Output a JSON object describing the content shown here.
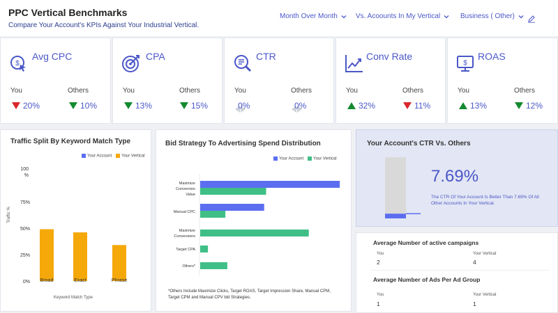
{
  "header": {
    "title": "PPC Vertical Benchmarks",
    "subtitle": "Compare Your Account's KPIs Against Your Industrial Vertical.",
    "filters": [
      "Month Over Month",
      "Vs. Acoounts In My Vertical",
      "Business ( Other)"
    ]
  },
  "kpis": [
    {
      "title": "Avg CPC",
      "you_label": "You",
      "others_label": "Others",
      "you": "20%",
      "others": "10%",
      "you_trend": "down-red",
      "others_trend": "down-green"
    },
    {
      "title": "CPA",
      "you_label": "You",
      "others_label": "Others",
      "you": "13%",
      "others": "15%",
      "you_trend": "down-green",
      "others_trend": "down-green"
    },
    {
      "title": "CTR",
      "you_label": "You",
      "others_label": "Others",
      "you": "0%",
      "others": "0%",
      "you_trend": "neutral",
      "others_trend": "neutral"
    },
    {
      "title": "Conv Rate",
      "you_label": "You",
      "others_label": "Others",
      "you": "32%",
      "others": "11%",
      "you_trend": "up-green",
      "others_trend": "down-red"
    },
    {
      "title": "ROAS",
      "you_label": "You",
      "others_label": "Others",
      "you": "13%",
      "others": "12%",
      "you_trend": "up-green",
      "others_trend": "down-green"
    }
  ],
  "traffic": {
    "title": "Traffic Split By Keyword Match Type",
    "legend_you": "Your Account",
    "legend_vertical": "Your Vertical",
    "ylabel": "Traffic %",
    "xlabel": "Keyword Match Type",
    "ytick_100": "100",
    "ytick_100_unit": "%",
    "yticks": [
      "75%",
      "50%",
      "25%",
      "0%"
    ]
  },
  "bid": {
    "title": "Bid Strategy To Advertising Spend Distribution",
    "legend_you": "Your Account",
    "legend_vertical": "Your Vertical",
    "labels": [
      [
        "Maximize",
        "Conversion",
        "Value"
      ],
      [
        "Manual CPC"
      ],
      [
        "Maximize",
        "Conversions"
      ],
      [
        "Target CPA"
      ],
      [
        "Others*"
      ]
    ],
    "footnote_1": "*Others Include Maximize Clicks, Target ROAS, Target Impression Share, Manual CPM,",
    "footnote_2": "Target CPM and Manual CPV bid Strategies."
  },
  "ctr": {
    "title": "Your Account's CTR Vs. Others",
    "value": "7.69%",
    "desc": "The CTR Of Your Account Is Better Than 7.69% Of All Other Accounts In Your Vertical.",
    "percentile": 7.69
  },
  "stats": {
    "campaigns_title": "Average Number of active campaigns",
    "ads_title": "Average Number of Ads Per Ad Group",
    "you_label": "You",
    "vertical_label": "Your Vertical",
    "campaigns_you": "2",
    "campaigns_vertical": "4",
    "ads_you": "1",
    "ads_vertical": "1"
  },
  "colors": {
    "accent": "#4a57c8",
    "your_account": "#5b6ef0",
    "your_vertical_traffic": "#f5a80a",
    "your_vertical_bid": "#3fbf86"
  },
  "chart_data": [
    {
      "type": "bar",
      "title": "Traffic Split By Keyword Match Type",
      "xlabel": "Keyword Match Type",
      "ylabel": "Traffic %",
      "categories": [
        "Broad",
        "Exact",
        "Phrase"
      ],
      "series": [
        {
          "name": "Your Account",
          "values": [
            0,
            0,
            0
          ]
        },
        {
          "name": "Your Vertical",
          "values": [
            49,
            46,
            34
          ]
        }
      ],
      "ylim": [
        0,
        100
      ]
    },
    {
      "type": "bar",
      "orientation": "horizontal",
      "title": "Bid Strategy To Advertising Spend Distribution",
      "categories": [
        "Maximize Conversion Value",
        "Manual CPC",
        "Maximize Conversions",
        "Target CPA",
        "Others*"
      ],
      "series": [
        {
          "name": "Your Account",
          "values": [
            72,
            33,
            0,
            0,
            0
          ]
        },
        {
          "name": "Your Vertical",
          "values": [
            34,
            13,
            56,
            4,
            14
          ]
        }
      ],
      "xlim": [
        0,
        100
      ]
    }
  ]
}
